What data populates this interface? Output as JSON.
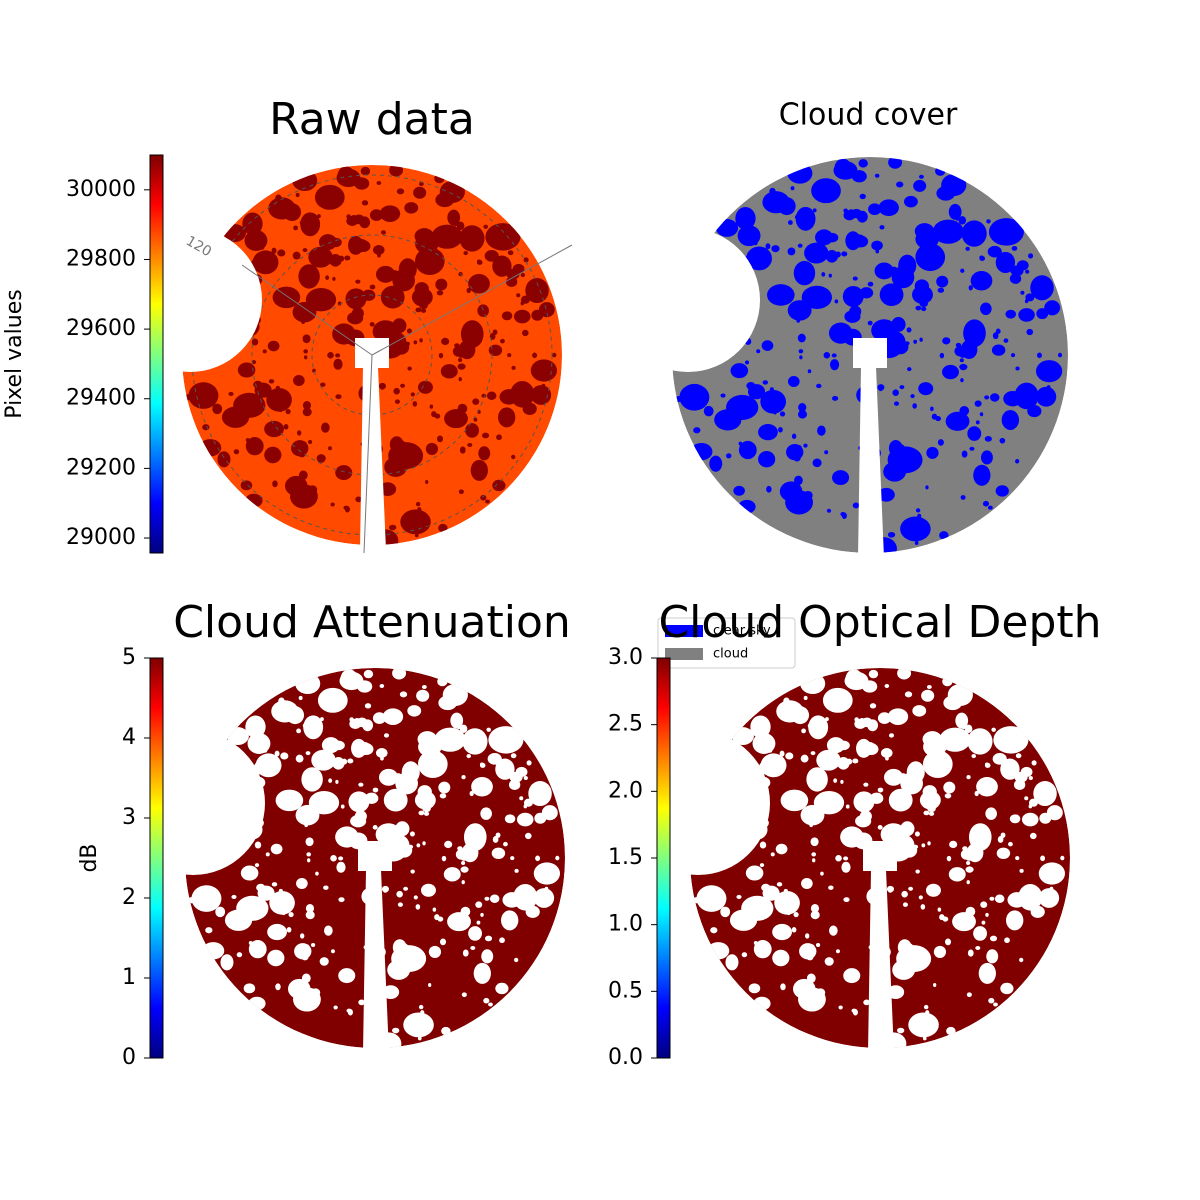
{
  "chart_data": [
    {
      "type": "image",
      "title": "Raw data",
      "annotation": "120",
      "colormap": "jet",
      "colorbar": {
        "label": "Pixel values",
        "lim": [
          28957,
          30100
        ],
        "ticks": [
          29000,
          29200,
          29400,
          29600,
          29800,
          30000
        ]
      }
    },
    {
      "type": "image",
      "title": "Cloud cover",
      "legend": [
        {
          "name": "clear sky",
          "color": "#0000ff"
        },
        {
          "name": "cloud",
          "color": "#808080"
        }
      ]
    },
    {
      "type": "image",
      "title": "Cloud Attenuation",
      "colormap": "jet",
      "colorbar": {
        "label": "dB",
        "lim": [
          0,
          5
        ],
        "ticks": [
          0,
          1,
          2,
          3,
          4,
          5
        ]
      }
    },
    {
      "type": "image",
      "title": "Cloud Optical Depth",
      "colormap": "jet",
      "colorbar": {
        "lim": [
          0,
          3
        ],
        "ticks": [
          {
            "value": 0,
            "label": "0.0"
          },
          0.5,
          {
            "value": 1,
            "label": "1.0"
          },
          1.5,
          {
            "value": 2,
            "label": "2.0"
          },
          2.5,
          {
            "value": 3,
            "label": "3.0"
          }
        ]
      }
    }
  ]
}
